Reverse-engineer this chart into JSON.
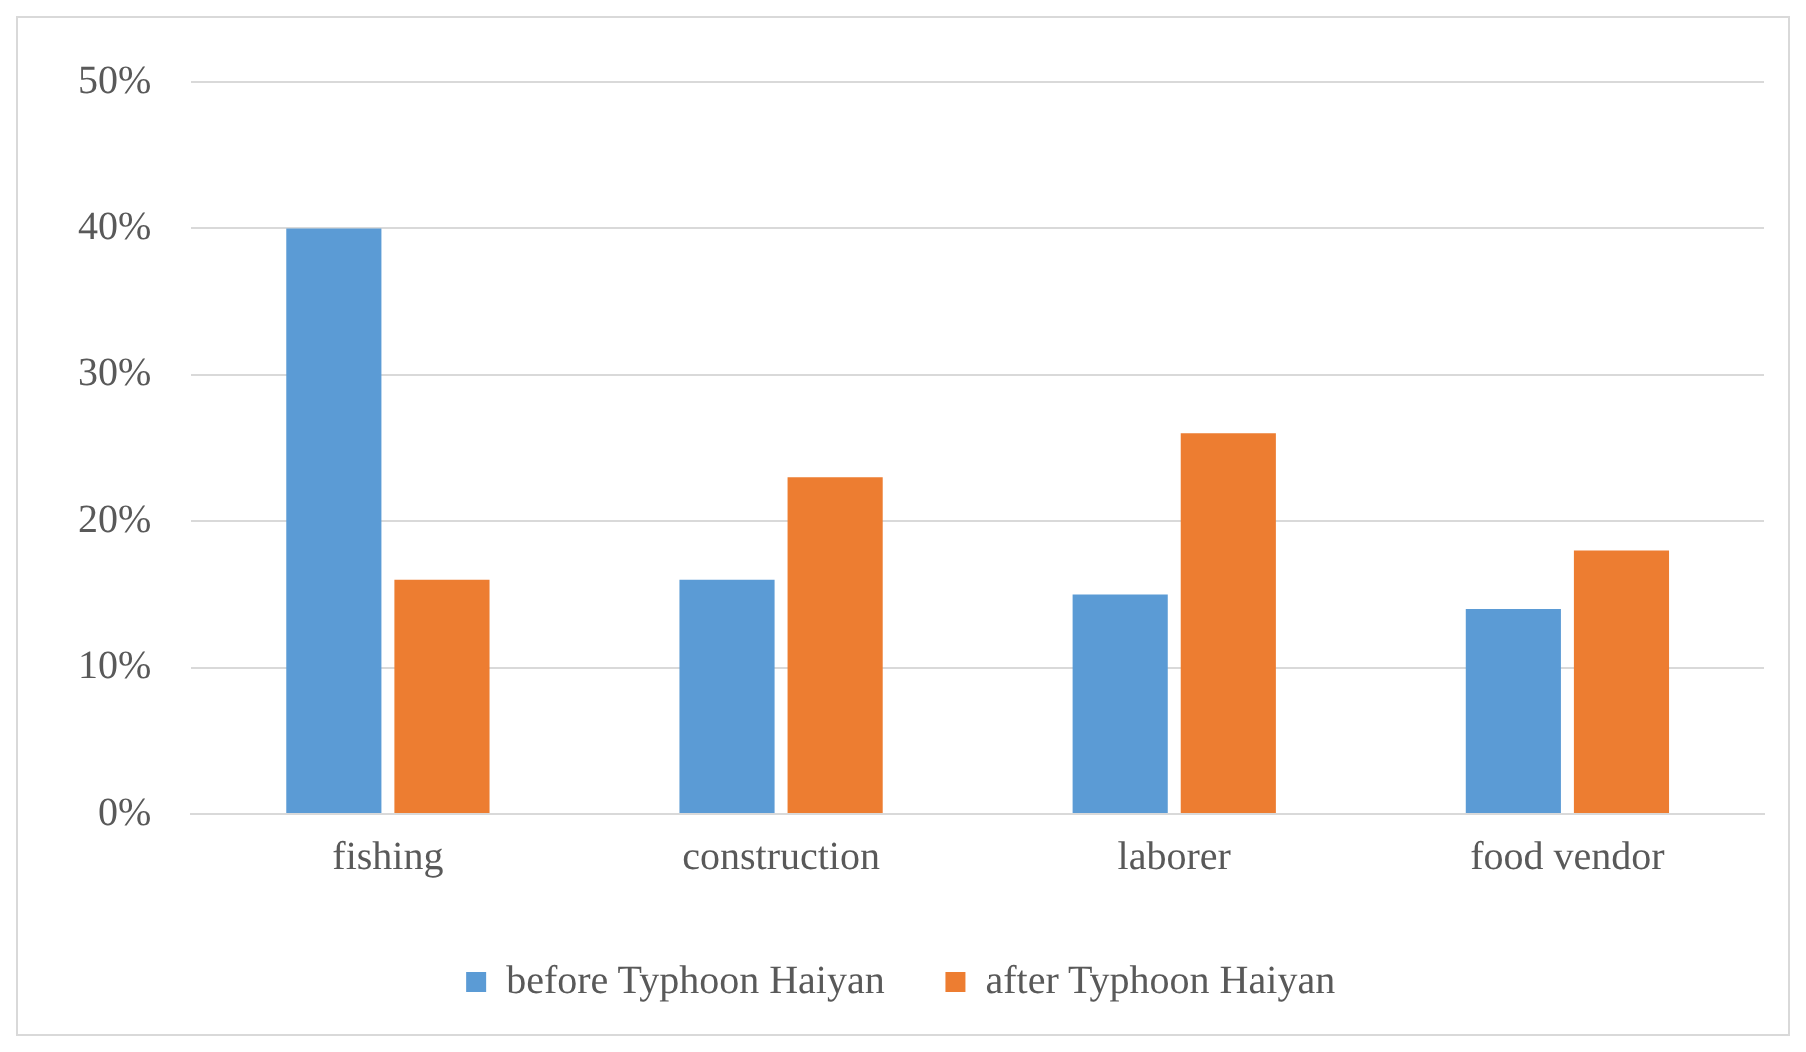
{
  "chart_data": {
    "type": "bar",
    "categories": [
      "fishing",
      "construction",
      "laborer",
      "food vendor"
    ],
    "series": [
      {
        "name": "before Typhoon Haiyan",
        "color": "#5b9bd5",
        "values": [
          40,
          16,
          15,
          14
        ]
      },
      {
        "name": "after Typhoon Haiyan",
        "color": "#ed7d31",
        "values": [
          16,
          23,
          26,
          18
        ]
      }
    ],
    "ylim": [
      0,
      50
    ],
    "yticks": [
      {
        "value": 0,
        "label": "0%"
      },
      {
        "value": 10,
        "label": "10%"
      },
      {
        "value": 20,
        "label": "20%"
      },
      {
        "value": 30,
        "label": "30%"
      },
      {
        "value": 40,
        "label": "40%"
      },
      {
        "value": 50,
        "label": "50%"
      }
    ],
    "grid": "y",
    "legend": "bottom"
  }
}
